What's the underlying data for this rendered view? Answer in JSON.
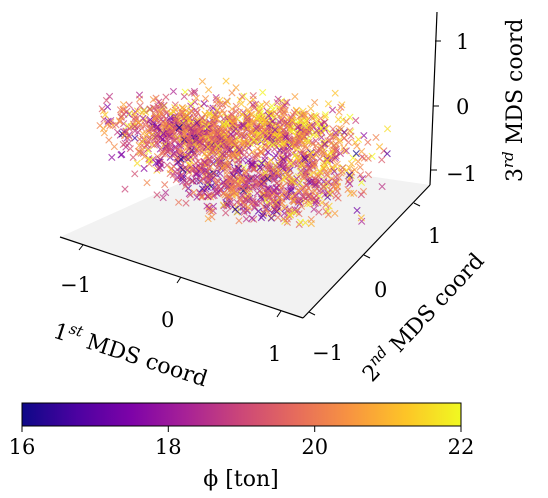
{
  "chart_data": {
    "type": "scatter",
    "projection": "3d",
    "marker": "x",
    "colormap": "plasma",
    "axes": {
      "x": {
        "label": {
          "num": "1",
          "sup": "st",
          "rest": " MDS coord"
        },
        "ticks": [
          "−1",
          "0",
          "1"
        ],
        "lim": [
          -1.3,
          1.3
        ]
      },
      "y": {
        "label": {
          "num": "2",
          "sup": "nd",
          "rest": " MDS coord"
        },
        "ticks": [
          "−1",
          "0",
          "1"
        ],
        "lim": [
          -1.3,
          1.3
        ]
      },
      "z": {
        "label": {
          "num": "3",
          "sup": "rd",
          "rest": " MDS coord"
        },
        "ticks": [
          "−1",
          "0",
          "1"
        ],
        "lim": [
          -1.3,
          1.3
        ]
      }
    },
    "colorbar": {
      "label": "ϕ [ton]",
      "range": [
        16,
        22
      ],
      "ticks": [
        "16",
        "18",
        "20",
        "22"
      ],
      "orientation": "horizontal"
    },
    "point_cloud": {
      "count": 2200,
      "value_range": [
        16,
        22
      ],
      "description_shape": "ring-like cluster of points in 3D MDS space"
    }
  }
}
